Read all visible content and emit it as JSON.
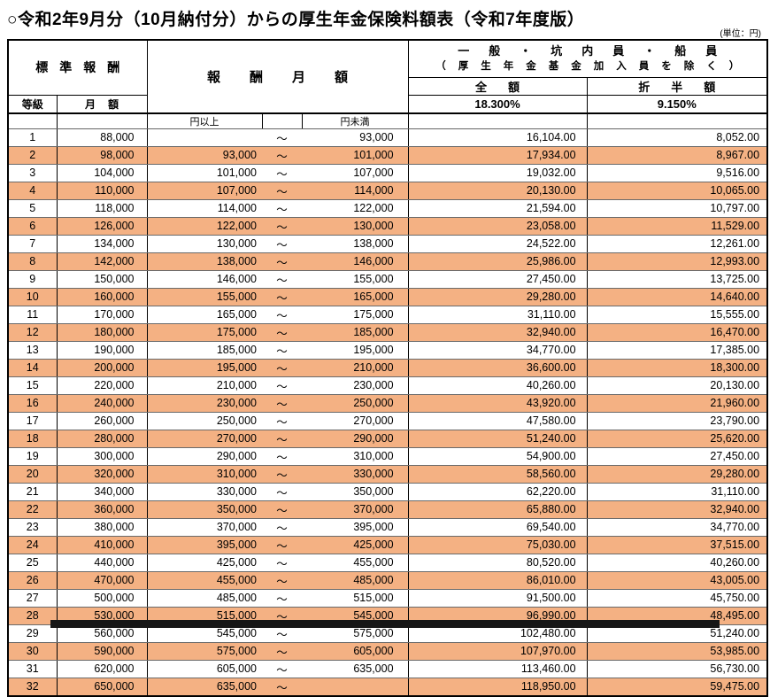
{
  "page": {
    "title": "○令和2年9月分（10月納付分）からの厚生年金保険料額表（令和7年度版）",
    "unit_note": "(単位：円)"
  },
  "table": {
    "headers": {
      "standard_remuneration": "標準報酬",
      "grade": "等級",
      "monthly_amount": "月額",
      "remuneration_monthly": "報酬月額",
      "general_line1": "一般・坑内員・船員",
      "general_line2": "（厚生年金基金加入員を除く）",
      "full_amount": "全額",
      "half_amount": "折半額",
      "full_rate": "18.300%",
      "half_rate": "9.150%",
      "yen_or_more": "円以上",
      "yen_less_than": "円未満",
      "tilde": "～"
    },
    "highlight_color": "#F4B183",
    "row_fields": [
      "grade",
      "standard_monthly_amount",
      "range_from",
      "range_to",
      "full_premium",
      "half_premium"
    ],
    "rows": [
      [
        "1",
        "88,000",
        "",
        "93,000",
        "16,104.00",
        "8,052.00"
      ],
      [
        "2",
        "98,000",
        "93,000",
        "101,000",
        "17,934.00",
        "8,967.00"
      ],
      [
        "3",
        "104,000",
        "101,000",
        "107,000",
        "19,032.00",
        "9,516.00"
      ],
      [
        "4",
        "110,000",
        "107,000",
        "114,000",
        "20,130.00",
        "10,065.00"
      ],
      [
        "5",
        "118,000",
        "114,000",
        "122,000",
        "21,594.00",
        "10,797.00"
      ],
      [
        "6",
        "126,000",
        "122,000",
        "130,000",
        "23,058.00",
        "11,529.00"
      ],
      [
        "7",
        "134,000",
        "130,000",
        "138,000",
        "24,522.00",
        "12,261.00"
      ],
      [
        "8",
        "142,000",
        "138,000",
        "146,000",
        "25,986.00",
        "12,993.00"
      ],
      [
        "9",
        "150,000",
        "146,000",
        "155,000",
        "27,450.00",
        "13,725.00"
      ],
      [
        "10",
        "160,000",
        "155,000",
        "165,000",
        "29,280.00",
        "14,640.00"
      ],
      [
        "11",
        "170,000",
        "165,000",
        "175,000",
        "31,110.00",
        "15,555.00"
      ],
      [
        "12",
        "180,000",
        "175,000",
        "185,000",
        "32,940.00",
        "16,470.00"
      ],
      [
        "13",
        "190,000",
        "185,000",
        "195,000",
        "34,770.00",
        "17,385.00"
      ],
      [
        "14",
        "200,000",
        "195,000",
        "210,000",
        "36,600.00",
        "18,300.00"
      ],
      [
        "15",
        "220,000",
        "210,000",
        "230,000",
        "40,260.00",
        "20,130.00"
      ],
      [
        "16",
        "240,000",
        "230,000",
        "250,000",
        "43,920.00",
        "21,960.00"
      ],
      [
        "17",
        "260,000",
        "250,000",
        "270,000",
        "47,580.00",
        "23,790.00"
      ],
      [
        "18",
        "280,000",
        "270,000",
        "290,000",
        "51,240.00",
        "25,620.00"
      ],
      [
        "19",
        "300,000",
        "290,000",
        "310,000",
        "54,900.00",
        "27,450.00"
      ],
      [
        "20",
        "320,000",
        "310,000",
        "330,000",
        "58,560.00",
        "29,280.00"
      ],
      [
        "21",
        "340,000",
        "330,000",
        "350,000",
        "62,220.00",
        "31,110.00"
      ],
      [
        "22",
        "360,000",
        "350,000",
        "370,000",
        "65,880.00",
        "32,940.00"
      ],
      [
        "23",
        "380,000",
        "370,000",
        "395,000",
        "69,540.00",
        "34,770.00"
      ],
      [
        "24",
        "410,000",
        "395,000",
        "425,000",
        "75,030.00",
        "37,515.00"
      ],
      [
        "25",
        "440,000",
        "425,000",
        "455,000",
        "80,520.00",
        "40,260.00"
      ],
      [
        "26",
        "470,000",
        "455,000",
        "485,000",
        "86,010.00",
        "43,005.00"
      ],
      [
        "27",
        "500,000",
        "485,000",
        "515,000",
        "91,500.00",
        "45,750.00"
      ],
      [
        "28",
        "530,000",
        "515,000",
        "545,000",
        "96,990.00",
        "48,495.00"
      ],
      [
        "29",
        "560,000",
        "545,000",
        "575,000",
        "102,480.00",
        "51,240.00"
      ],
      [
        "30",
        "590,000",
        "575,000",
        "605,000",
        "107,970.00",
        "53,985.00"
      ],
      [
        "31",
        "620,000",
        "605,000",
        "635,000",
        "113,460.00",
        "56,730.00"
      ],
      [
        "32",
        "650,000",
        "635,000",
        "",
        "118,950.00",
        "59,475.00"
      ]
    ]
  }
}
